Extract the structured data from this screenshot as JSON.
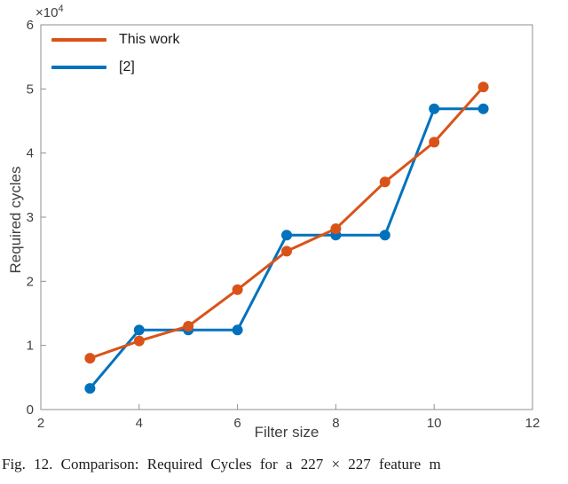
{
  "figure": {
    "caption": "Fig. 12. Comparison: Required Cycles for a 227 × 227 feature m"
  },
  "chart_data": {
    "type": "line",
    "title": "",
    "xlabel": "Filter size",
    "ylabel": "Required cycles",
    "y_exponent_base": "×10",
    "y_exponent_power": "4",
    "xlim": [
      2,
      12
    ],
    "ylim": [
      0,
      60000
    ],
    "xticks": [
      2,
      4,
      6,
      8,
      10,
      12
    ],
    "yticks": [
      0,
      1,
      2,
      3,
      4,
      5,
      6
    ],
    "ytick_scale": 10000,
    "grid": false,
    "legend_position": "top-left",
    "x": [
      3,
      4,
      5,
      6,
      7,
      8,
      9,
      10,
      11
    ],
    "series": [
      {
        "name": "This work",
        "color": "#D95319",
        "values": [
          8000,
          10700,
          13000,
          18700,
          24700,
          28200,
          35500,
          41700,
          50300
        ]
      },
      {
        "name": "[2]",
        "color": "#0072BD",
        "values": [
          3300,
          12400,
          12400,
          12400,
          27200,
          27200,
          27200,
          46900,
          46900
        ]
      }
    ]
  },
  "style": {
    "axis_color": "#8f8f8f",
    "tick_label_color": "#3f3f3f"
  }
}
